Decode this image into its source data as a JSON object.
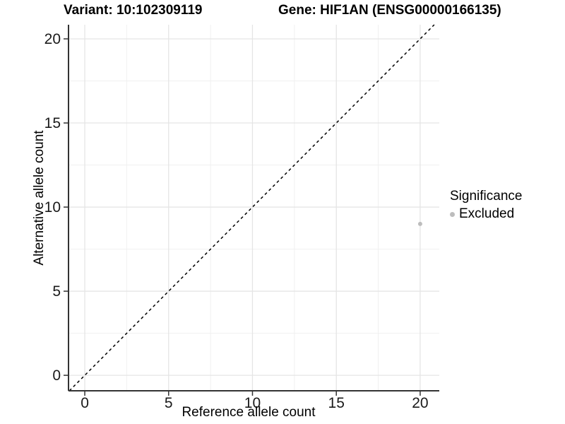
{
  "chart_data": {
    "type": "scatter",
    "titles": {
      "variant": "Variant: 10:102309119",
      "gene": "Gene: HIF1AN (ENSG00000166135)"
    },
    "xlabel": "Reference allele count",
    "ylabel": "Alternative allele count",
    "xlim": [
      -0.97,
      21.14
    ],
    "ylim": [
      -0.92,
      20.84
    ],
    "x_ticks": [
      0,
      5,
      10,
      15,
      20
    ],
    "y_ticks": [
      0,
      5,
      10,
      15,
      20
    ],
    "x_minor": [
      2.5,
      7.5,
      12.5,
      17.5
    ],
    "y_minor": [
      2.5,
      7.5,
      12.5,
      17.5
    ],
    "grid": "major+minor",
    "series": [
      {
        "name": "Excluded",
        "color": "#bdbdbd",
        "points": [
          {
            "x": 20,
            "y": 9
          }
        ]
      }
    ],
    "reference_line": {
      "type": "abline",
      "slope": 1,
      "intercept": 0,
      "style": "dashed",
      "color": "#000000"
    },
    "legend": {
      "title": "Significance",
      "position": "right",
      "entries": [
        {
          "label": "Excluded",
          "color": "#bdbdbd"
        }
      ]
    },
    "colors": {
      "background": "#ffffff",
      "grid_major": "#e5e5e5",
      "grid_minor": "#f0f0f0",
      "axis": "#333333",
      "tick_text": "#1a1a1a",
      "title_text": "#000000"
    }
  }
}
